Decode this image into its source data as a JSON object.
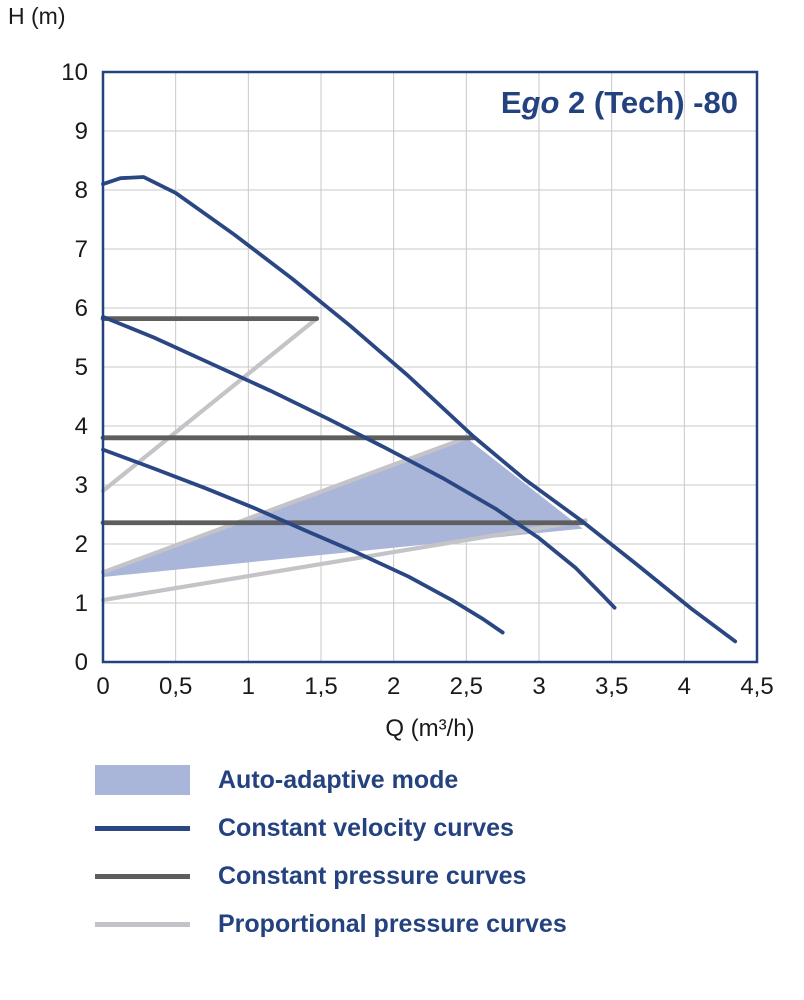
{
  "chart_data": {
    "type": "line",
    "title": {
      "prefix": "E",
      "italic": "go",
      "rest": " 2 (Tech) -80"
    },
    "x_axis": {
      "label": "Q (m³/h)",
      "min": 0,
      "max": 4.5,
      "tick_values": [
        0,
        0.5,
        1,
        1.5,
        2,
        2.5,
        3,
        3.5,
        4,
        4.5
      ],
      "tick_labels": [
        "0",
        "0,5",
        "1",
        "1,5",
        "2",
        "2,5",
        "3",
        "3,5",
        "4",
        "4,5"
      ]
    },
    "y_axis": {
      "label": "H (m)",
      "min": 0,
      "max": 10,
      "tick_values": [
        0,
        1,
        2,
        3,
        4,
        5,
        6,
        7,
        8,
        9,
        10
      ],
      "tick_labels": [
        "0",
        "1",
        "2",
        "3",
        "4",
        "5",
        "6",
        "7",
        "8",
        "9",
        "10"
      ]
    },
    "grid": true,
    "auto_adaptive_area": {
      "label": "Auto-adaptive mode",
      "polygon": [
        [
          0,
          1.52
        ],
        [
          2.5,
          3.8
        ],
        [
          3.3,
          2.26
        ],
        [
          0,
          1.44
        ]
      ]
    },
    "series": [
      {
        "id": "velocity-1",
        "group": "constant-velocity",
        "points": [
          [
            0,
            8.1
          ],
          [
            0.12,
            8.2
          ],
          [
            0.28,
            8.22
          ],
          [
            0.5,
            7.95
          ],
          [
            0.9,
            7.25
          ],
          [
            1.3,
            6.5
          ],
          [
            1.7,
            5.7
          ],
          [
            2.1,
            4.85
          ],
          [
            2.55,
            3.82
          ],
          [
            2.9,
            3.1
          ],
          [
            3.3,
            2.38
          ],
          [
            3.7,
            1.6
          ],
          [
            4.05,
            0.9
          ],
          [
            4.35,
            0.35
          ]
        ]
      },
      {
        "id": "velocity-2",
        "group": "constant-velocity",
        "points": [
          [
            0,
            5.85
          ],
          [
            0.35,
            5.5
          ],
          [
            0.75,
            5.05
          ],
          [
            1.15,
            4.6
          ],
          [
            1.55,
            4.12
          ],
          [
            1.95,
            3.62
          ],
          [
            2.35,
            3.1
          ],
          [
            2.7,
            2.6
          ],
          [
            3.0,
            2.1
          ],
          [
            3.25,
            1.6
          ],
          [
            3.45,
            1.1
          ],
          [
            3.52,
            0.92
          ]
        ]
      },
      {
        "id": "velocity-3",
        "group": "constant-velocity",
        "points": [
          [
            0,
            3.6
          ],
          [
            0.35,
            3.28
          ],
          [
            0.7,
            2.95
          ],
          [
            1.05,
            2.6
          ],
          [
            1.4,
            2.22
          ],
          [
            1.75,
            1.85
          ],
          [
            2.1,
            1.45
          ],
          [
            2.4,
            1.05
          ],
          [
            2.62,
            0.72
          ],
          [
            2.75,
            0.5
          ]
        ]
      },
      {
        "id": "pressure-1",
        "group": "constant-pressure",
        "points": [
          [
            0,
            5.82
          ],
          [
            1.47,
            5.82
          ]
        ]
      },
      {
        "id": "pressure-2",
        "group": "constant-pressure",
        "points": [
          [
            0,
            3.8
          ],
          [
            2.55,
            3.8
          ]
        ]
      },
      {
        "id": "pressure-3",
        "group": "constant-pressure",
        "points": [
          [
            0,
            2.36
          ],
          [
            3.3,
            2.36
          ]
        ]
      },
      {
        "id": "proportional-1",
        "group": "proportional-pressure",
        "points": [
          [
            0,
            2.9
          ],
          [
            1.47,
            5.82
          ]
        ]
      },
      {
        "id": "proportional-2",
        "group": "proportional-pressure",
        "points": [
          [
            0,
            1.52
          ],
          [
            2.5,
            3.8
          ]
        ]
      },
      {
        "id": "proportional-3",
        "group": "proportional-pressure",
        "points": [
          [
            0,
            1.05
          ],
          [
            3.32,
            2.4
          ]
        ]
      }
    ]
  },
  "legend": {
    "items": [
      {
        "swatch": "area",
        "label": "Auto-adaptive mode"
      },
      {
        "swatch": "line-navy",
        "label": "Constant velocity curves"
      },
      {
        "swatch": "line-darkgray",
        "label": "Constant pressure curves"
      },
      {
        "swatch": "line-lightgray",
        "label": "Proportional pressure curves"
      }
    ]
  },
  "colors": {
    "navy": "#2a4784",
    "dark_gray": "#5e5e5e",
    "light_gray": "#c4c4c8",
    "area_fill": "#a9b6da",
    "grid": "#c9c9c9",
    "border": "#24427f",
    "text": "#1a1a1a",
    "accent_text": "#24427f"
  }
}
